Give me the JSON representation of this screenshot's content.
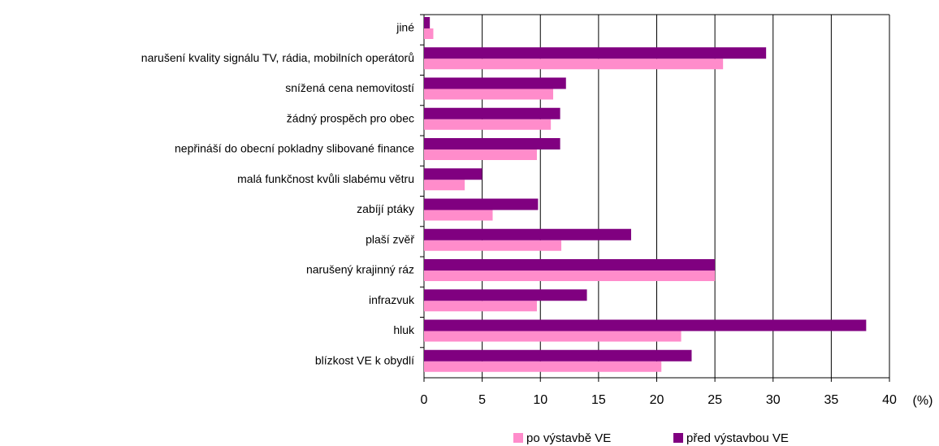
{
  "chart_data": {
    "type": "hbar",
    "categories": [
      "jiné",
      "narušení kvality signálu TV, rádia, mobilních operátorů",
      "snížená cena nemovitostí",
      "žádný prospěch pro obec",
      "nepřináší do obecní pokladny slibované finance",
      "malá funkčnost kvůli slabému větru",
      "zabíjí ptáky",
      "plaší zvěř",
      "narušený krajinný ráz",
      "infrazvuk",
      "hluk",
      "blízkost VE k obydlí"
    ],
    "series": [
      {
        "name": "po výstavbě VE",
        "color": "#ff8ccb",
        "values": [
          0.8,
          25.7,
          11.1,
          10.9,
          9.7,
          3.5,
          5.9,
          11.8,
          25.0,
          9.7,
          22.1,
          20.4
        ]
      },
      {
        "name": "před výstavbou VE",
        "color": "#800080",
        "values": [
          0.5,
          29.4,
          12.2,
          11.7,
          11.7,
          5.0,
          9.8,
          17.8,
          25.0,
          14.0,
          38.0,
          23.0
        ]
      }
    ],
    "x_label": "(%)",
    "xlim": [
      0,
      40
    ],
    "xticks": [
      0,
      5,
      10,
      15,
      20,
      25,
      30,
      35,
      40
    ],
    "grid": true
  }
}
